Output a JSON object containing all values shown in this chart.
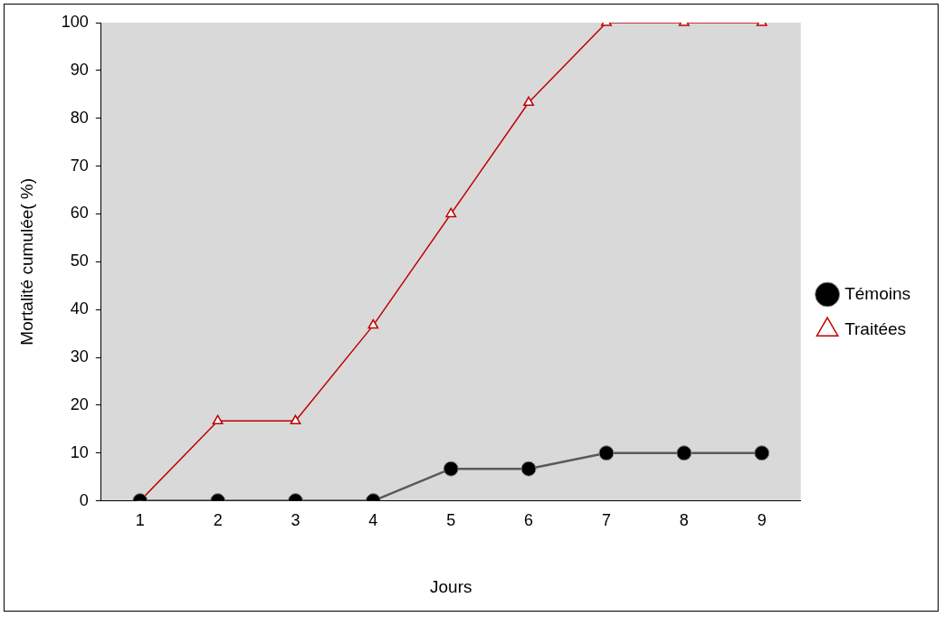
{
  "chart_data": {
    "type": "line",
    "xlabel": "Jours",
    "ylabel": "Mortalité cumulée( %)",
    "categories": [
      "1",
      "2",
      "3",
      "4",
      "5",
      "6",
      "7",
      "8",
      "9"
    ],
    "series": [
      {
        "name": "Témoins",
        "color": "#595959",
        "marker": "circle",
        "values": [
          0,
          0,
          0,
          0,
          6.7,
          6.7,
          10,
          10,
          10
        ]
      },
      {
        "name": "Traitées",
        "color": "#c00000",
        "marker": "triangle",
        "values": [
          0,
          16.7,
          16.7,
          36.7,
          60,
          83.3,
          100,
          100,
          100
        ]
      }
    ],
    "ylim": [
      0,
      100
    ],
    "yticks": [
      0,
      10,
      20,
      30,
      40,
      50,
      60,
      70,
      80,
      90,
      100
    ],
    "grid": false,
    "legend": "right",
    "line_style": "solid"
  }
}
